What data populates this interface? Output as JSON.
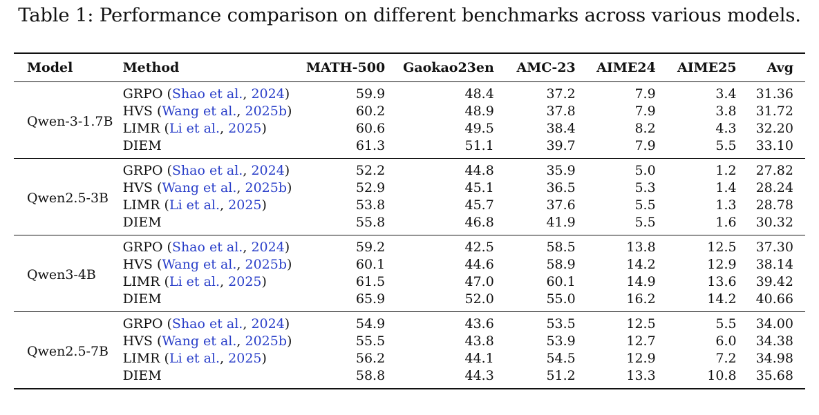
{
  "caption": "Table 1: Performance comparison on different benchmarks across various models.",
  "headers": {
    "model": "Model",
    "method": "Method",
    "cols": [
      "MATH-500",
      "Gaokao23en",
      "AMC-23",
      "AIME24",
      "AIME25",
      "Avg"
    ]
  },
  "link_color": "#2a3fc9",
  "groups": [
    {
      "model": "Qwen-3-1.7B",
      "rows": [
        {
          "method": "GRPO",
          "cite_authors": "Shao et al.",
          "cite_year": "2024",
          "values": [
            "59.9",
            "48.4",
            "37.2",
            "7.9",
            "3.4",
            "31.36"
          ]
        },
        {
          "method": "HVS",
          "cite_authors": "Wang et al.",
          "cite_year": "2025b",
          "values": [
            "60.2",
            "48.9",
            "37.8",
            "7.9",
            "3.8",
            "31.72"
          ]
        },
        {
          "method": "LIMR",
          "cite_authors": "Li et al.",
          "cite_year": "2025",
          "values": [
            "60.6",
            "49.5",
            "38.4",
            "8.2",
            "4.3",
            "32.20"
          ]
        },
        {
          "method": "DIEM",
          "values": [
            "61.3",
            "51.1",
            "39.7",
            "7.9",
            "5.5",
            "33.10"
          ]
        }
      ]
    },
    {
      "model": "Qwen2.5-3B",
      "rows": [
        {
          "method": "GRPO",
          "cite_authors": "Shao et al.",
          "cite_year": "2024",
          "values": [
            "52.2",
            "44.8",
            "35.9",
            "5.0",
            "1.2",
            "27.82"
          ]
        },
        {
          "method": "HVS",
          "cite_authors": "Wang et al.",
          "cite_year": "2025b",
          "values": [
            "52.9",
            "45.1",
            "36.5",
            "5.3",
            "1.4",
            "28.24"
          ]
        },
        {
          "method": "LIMR",
          "cite_authors": "Li et al.",
          "cite_year": "2025",
          "values": [
            "53.8",
            "45.7",
            "37.6",
            "5.5",
            "1.3",
            "28.78"
          ]
        },
        {
          "method": "DIEM",
          "values": [
            "55.8",
            "46.8",
            "41.9",
            "5.5",
            "1.6",
            "30.32"
          ]
        }
      ]
    },
    {
      "model": "Qwen3-4B",
      "rows": [
        {
          "method": "GRPO",
          "cite_authors": "Shao et al.",
          "cite_year": "2024",
          "values": [
            "59.2",
            "42.5",
            "58.5",
            "13.8",
            "12.5",
            "37.30"
          ]
        },
        {
          "method": "HVS",
          "cite_authors": "Wang et al.",
          "cite_year": "2025b",
          "values": [
            "60.1",
            "44.6",
            "58.9",
            "14.2",
            "12.9",
            "38.14"
          ]
        },
        {
          "method": "LIMR",
          "cite_authors": "Li et al.",
          "cite_year": "2025",
          "values": [
            "61.5",
            "47.0",
            "60.1",
            "14.9",
            "13.6",
            "39.42"
          ]
        },
        {
          "method": "DIEM",
          "values": [
            "65.9",
            "52.0",
            "55.0",
            "16.2",
            "14.2",
            "40.66"
          ]
        }
      ]
    },
    {
      "model": "Qwen2.5-7B",
      "rows": [
        {
          "method": "GRPO",
          "cite_authors": "Shao et al.",
          "cite_year": "2024",
          "values": [
            "54.9",
            "43.6",
            "53.5",
            "12.5",
            "5.5",
            "34.00"
          ]
        },
        {
          "method": "HVS",
          "cite_authors": "Wang et al.",
          "cite_year": "2025b",
          "values": [
            "55.5",
            "43.8",
            "53.9",
            "12.7",
            "6.0",
            "34.38"
          ]
        },
        {
          "method": "LIMR",
          "cite_authors": "Li et al.",
          "cite_year": "2025",
          "values": [
            "56.2",
            "44.1",
            "54.5",
            "12.9",
            "7.2",
            "34.98"
          ]
        },
        {
          "method": "DIEM",
          "values": [
            "58.8",
            "44.3",
            "51.2",
            "13.3",
            "10.8",
            "35.68"
          ]
        }
      ]
    }
  ]
}
